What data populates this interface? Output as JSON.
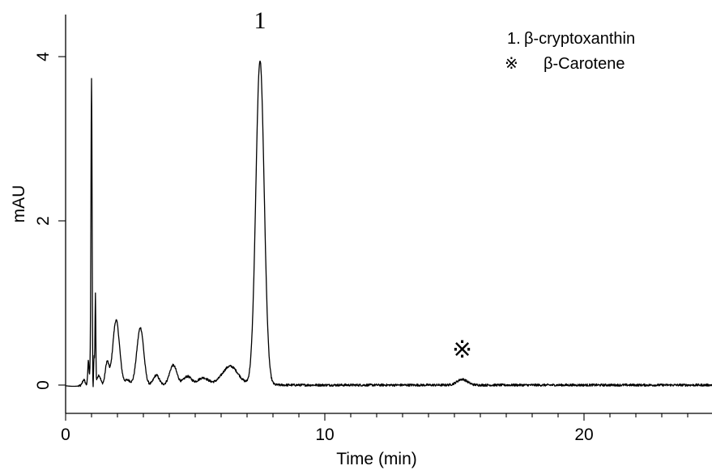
{
  "chart_data": {
    "type": "line",
    "title": "",
    "xlabel": "Time (min)",
    "ylabel": "mAU",
    "xlim": [
      0,
      25
    ],
    "ylim": [
      -0.3,
      4.5
    ],
    "x_ticks": [
      0,
      10,
      20
    ],
    "y_ticks": [
      0,
      2,
      4
    ],
    "grid": false,
    "legend_position": "top-right",
    "legend": [
      {
        "marker": "1.",
        "label": "β-cryptoxanthin"
      },
      {
        "marker": "※",
        "label": "β-Carotene"
      }
    ],
    "annotations": [
      {
        "text": "1",
        "x": 7.5,
        "y": 4.07
      },
      {
        "text": "※",
        "x": 15.3,
        "y": 0.06
      }
    ],
    "series": [
      {
        "baseline": 0.0,
        "peaks": [
          {
            "t": 0.7,
            "h": 0.07,
            "w": 0.05
          },
          {
            "t": 0.88,
            "h": 0.3,
            "w": 0.025
          },
          {
            "t": 0.95,
            "h": 0.15,
            "w": 0.02
          },
          {
            "t": 1.0,
            "h": 3.73,
            "w": 0.022
          },
          {
            "t": 1.05,
            "h": -0.22,
            "w": 0.015
          },
          {
            "t": 1.1,
            "h": 0.35,
            "w": 0.02
          },
          {
            "t": 1.15,
            "h": 1.08,
            "w": 0.015
          },
          {
            "t": 1.28,
            "h": 0.12,
            "w": 0.07
          },
          {
            "t": 1.6,
            "h": 0.27,
            "w": 0.07
          },
          {
            "t": 1.95,
            "h": 0.79,
            "w": 0.13
          },
          {
            "t": 2.4,
            "h": 0.06,
            "w": 0.1
          },
          {
            "t": 2.75,
            "h": 0.13,
            "w": 0.1
          },
          {
            "t": 2.9,
            "h": 0.65,
            "w": 0.12
          },
          {
            "t": 3.5,
            "h": 0.12,
            "w": 0.11
          },
          {
            "t": 4.15,
            "h": 0.24,
            "w": 0.14
          },
          {
            "t": 4.7,
            "h": 0.1,
            "w": 0.15
          },
          {
            "t": 5.3,
            "h": 0.08,
            "w": 0.2
          },
          {
            "t": 6.35,
            "h": 0.22,
            "w": 0.3
          },
          {
            "t": 7.5,
            "h": 3.95,
            "w": 0.16
          },
          {
            "t": 15.3,
            "h": 0.07,
            "w": 0.2
          }
        ]
      }
    ]
  }
}
